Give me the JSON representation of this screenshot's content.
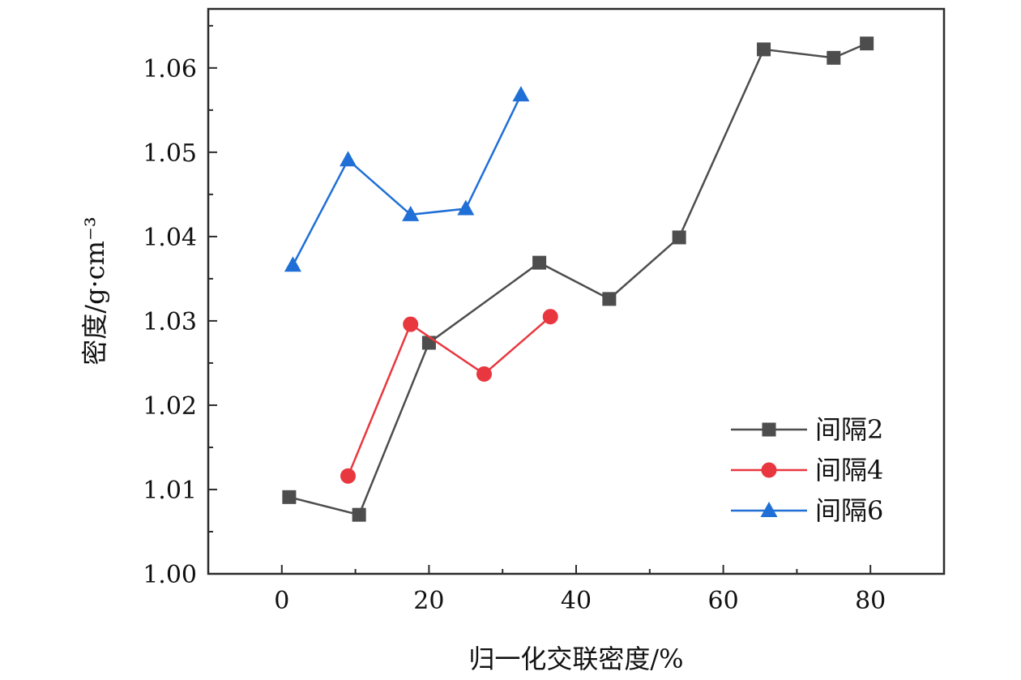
{
  "chart_data": {
    "type": "line",
    "title": "",
    "xlabel": "归一化交联密度/%",
    "ylabel": "密度/g·cm⁻³",
    "xlim": [
      -10,
      90
    ],
    "ylim": [
      1.0,
      1.067
    ],
    "xticks": [
      0,
      20,
      40,
      60,
      80
    ],
    "xtick_labels": [
      "0",
      "20",
      "40",
      "60",
      "80"
    ],
    "yticks": [
      1.0,
      1.01,
      1.02,
      1.03,
      1.04,
      1.05,
      1.06
    ],
    "ytick_labels": [
      "1.00",
      "1.01",
      "1.02",
      "1.03",
      "1.04",
      "1.05",
      "1.06"
    ],
    "grid": false,
    "legend_position": "bottom-right",
    "series": [
      {
        "name": "间隔2",
        "color": "#4d4d4d",
        "marker": "square",
        "x": [
          1,
          10.5,
          20,
          35,
          44.5,
          54,
          65.5,
          75,
          79.5
        ],
        "y": [
          1.0091,
          1.007,
          1.0274,
          1.0369,
          1.0326,
          1.0399,
          1.0622,
          1.0612,
          1.0629
        ]
      },
      {
        "name": "间隔4",
        "color": "#e8373f",
        "marker": "circle",
        "x": [
          9,
          17.5,
          27.5,
          36.5
        ],
        "y": [
          1.0116,
          1.0296,
          1.0237,
          1.0305
        ]
      },
      {
        "name": "间隔6",
        "color": "#1f6fd6",
        "marker": "triangle",
        "x": [
          1.5,
          9,
          17.5,
          25,
          32.5
        ],
        "y": [
          1.0366,
          1.0491,
          1.0426,
          1.0433,
          1.0568
        ]
      }
    ]
  }
}
